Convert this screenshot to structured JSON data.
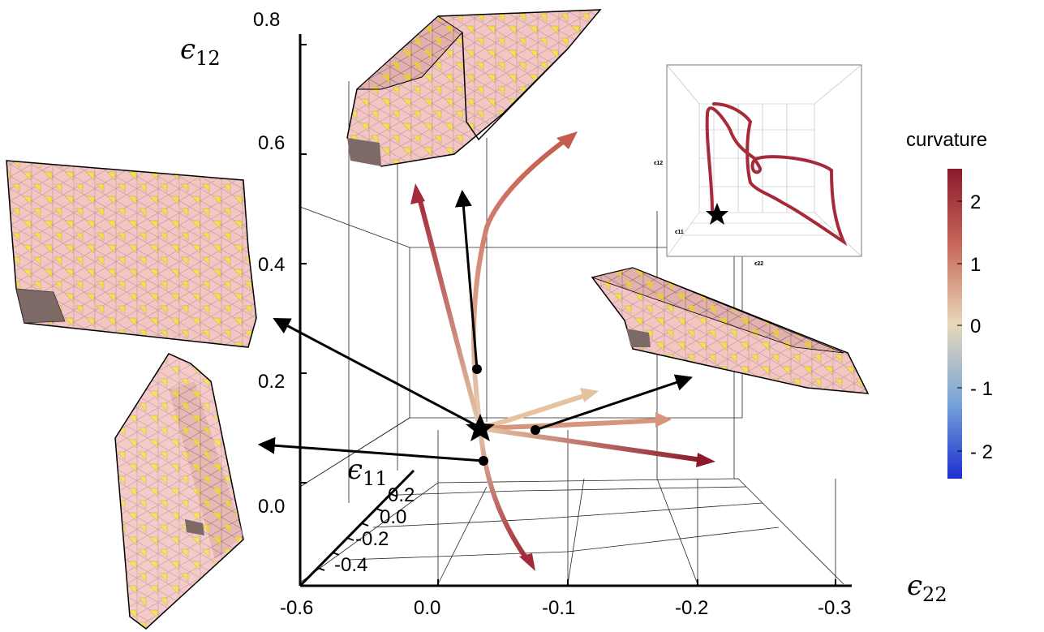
{
  "axes": {
    "e12": {
      "symbol": "ϵ",
      "sub": "12",
      "ticks": [
        "0.8",
        "0.6",
        "0.4",
        "0.2",
        "0.0"
      ]
    },
    "e11": {
      "symbol": "ϵ",
      "sub": "11",
      "ticks": [
        "0.2",
        "0.0",
        "-0.2",
        "-0.4"
      ]
    },
    "e22": {
      "symbol": "ϵ",
      "sub": "22",
      "ticks": [
        "-0.6",
        "0.0",
        "-0.1",
        "-0.2",
        "-0.3"
      ]
    }
  },
  "colorbar": {
    "title": "curvature",
    "ticks": [
      "2",
      "1",
      "0",
      "- 1",
      "- 2"
    ],
    "colors": {
      "top": "#8b1a2b",
      "upper": "#c86a5a",
      "mid": "#e8d8b8",
      "lower": "#7aa6d8",
      "bottom": "#1c2fd0"
    }
  },
  "inset": {
    "labels": {
      "e12": "ϵ12",
      "e11": "ϵ11",
      "e22": "ϵ22"
    }
  },
  "sheet_colors": {
    "pink": "#f4c6c3",
    "yellow": "#f5df4d",
    "edge": "#222222",
    "shade": "#7d6a66"
  }
}
